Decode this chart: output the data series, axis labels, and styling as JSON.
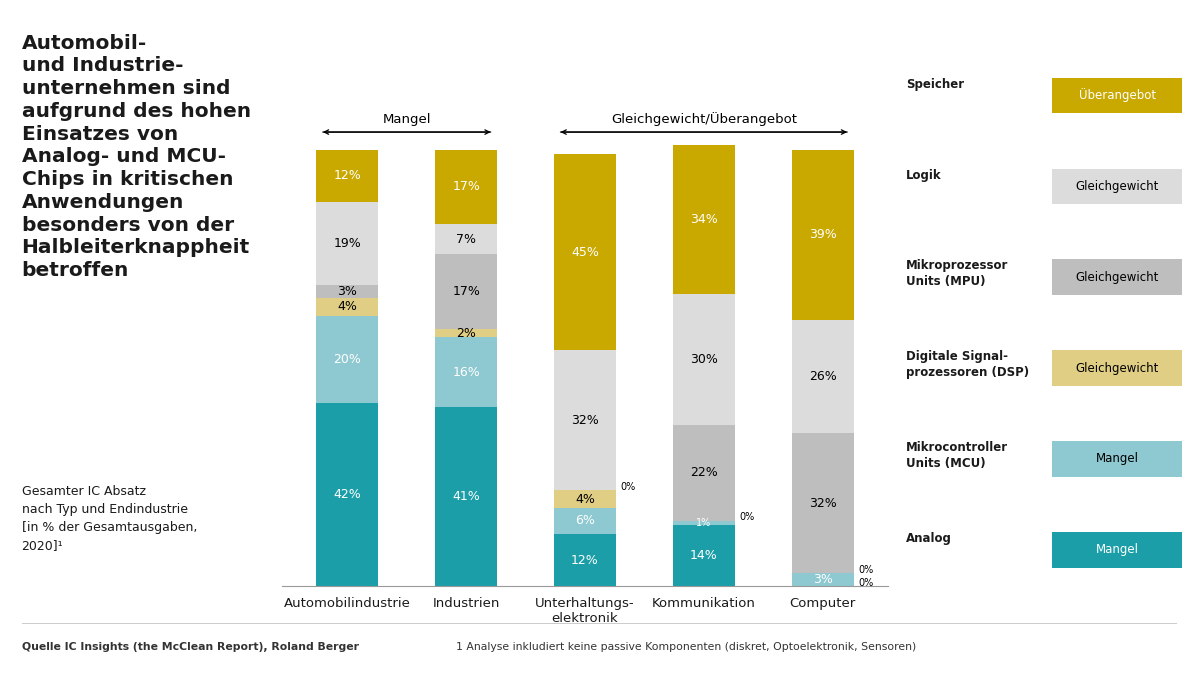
{
  "categories": [
    "Automobilindustrie",
    "Industrien",
    "Unterhaltungs-\nelektronik",
    "Kommunikation",
    "Computer"
  ],
  "segments": {
    "Analog": [
      42,
      41,
      12,
      14,
      0
    ],
    "MCU": [
      20,
      16,
      6,
      1,
      3
    ],
    "DSP": [
      4,
      2,
      4,
      0,
      0
    ],
    "MPU": [
      3,
      17,
      0,
      22,
      32
    ],
    "Logik": [
      19,
      7,
      32,
      30,
      26
    ],
    "Speicher": [
      12,
      17,
      45,
      34,
      39
    ]
  },
  "colors": {
    "Analog": "#1B9EA8",
    "MCU": "#8EC8D0",
    "DSP": "#E0CE85",
    "MPU": "#BEBEBE",
    "Logik": "#DCDCDC",
    "Speicher": "#C9A800"
  },
  "legend_labels": {
    "Speicher": "Überangebot",
    "Logik": "Gleichgewicht",
    "MPU": "Gleichgewicht",
    "DSP": "Gleichgewicht",
    "MCU": "Mangel",
    "Analog": "Mangel"
  },
  "legend_chip_names": {
    "Speicher": "Speicher",
    "Logik": "Logik",
    "MPU": "Mikroprozessor\nUnits (MPU)",
    "DSP": "Digitale Signal-\nprozessoren (DSP)",
    "MCU": "Mikrocontroller\nUnits (MCU)",
    "Analog": "Analog"
  },
  "title_left": "Automobil-\nund Industrie-\nunternehmen sind\naufgrund des hohen\nEinsatzes von\nAnalog- und MCU-\nChips in kritischen\nAnwendungen\nbesonders von der\nHalbleiterknappheit\nbetroffen",
  "subtitle": "Gesamter IC Absatz\nnach Typ und Endindustrie\n[in % der Gesamtausgaben,\n2020]¹",
  "footnote_left": "Quelle IC Insights (the McClean Report), Roland Berger",
  "footnote_right": "1 Analyse inkludiert keine passive Komponenten (diskret, Optoelektronik, Sensoren)",
  "background_color": "#FFFFFF",
  "text_color": "#1A1A1A",
  "bar_width": 0.52,
  "label_font_size": 9,
  "label_colors": {
    "Analog": "white",
    "MCU": "white",
    "DSP": "black",
    "MPU": "black",
    "Logik": "black",
    "Speicher": "white"
  },
  "legend_box_colors": {
    "Speicher": "white",
    "Logik": "black",
    "MPU": "black",
    "DSP": "black",
    "MCU": "black",
    "Analog": "white"
  }
}
